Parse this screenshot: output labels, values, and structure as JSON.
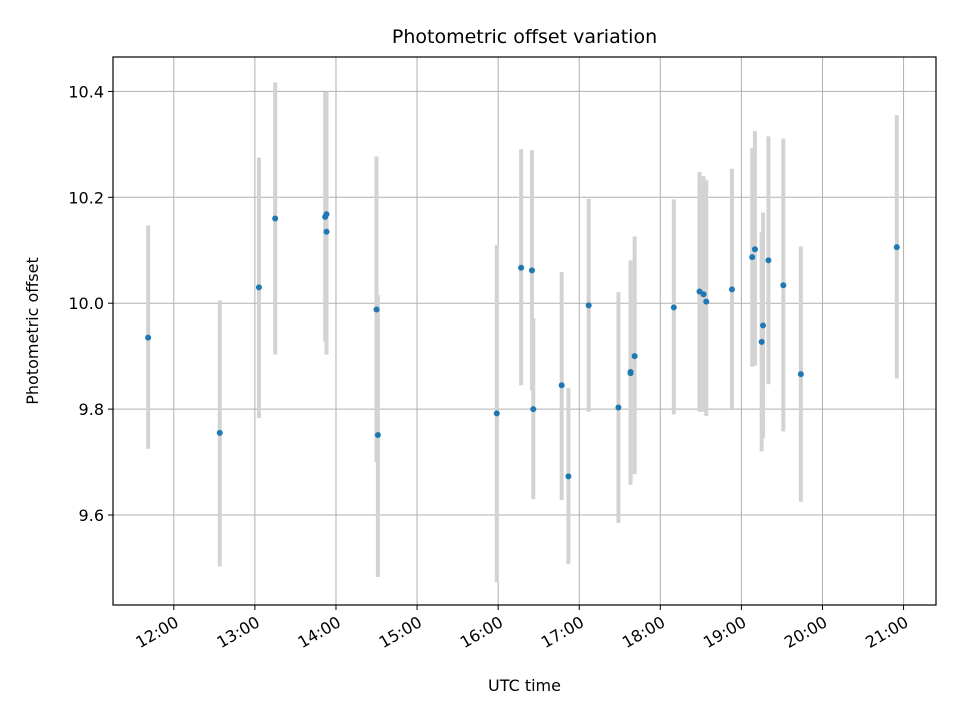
{
  "chart_data": {
    "type": "scatter",
    "title": "Photometric offset variation",
    "xlabel": "UTC time",
    "ylabel": "Photometric offset",
    "x_unit": "hours UTC",
    "xlim": [
      11.25,
      21.4
    ],
    "ylim": [
      9.43,
      10.465
    ],
    "x_ticks": [
      {
        "value": 12,
        "label": "12:00"
      },
      {
        "value": 13,
        "label": "13:00"
      },
      {
        "value": 14,
        "label": "14:00"
      },
      {
        "value": 15,
        "label": "15:00"
      },
      {
        "value": 16,
        "label": "16:00"
      },
      {
        "value": 17,
        "label": "17:00"
      },
      {
        "value": 18,
        "label": "18:00"
      },
      {
        "value": 19,
        "label": "19:00"
      },
      {
        "value": 20,
        "label": "20:00"
      },
      {
        "value": 21,
        "label": "21:00"
      }
    ],
    "y_ticks": [
      {
        "value": 9.6,
        "label": "9.6"
      },
      {
        "value": 9.8,
        "label": "9.8"
      },
      {
        "value": 10.0,
        "label": "10.0"
      },
      {
        "value": 10.2,
        "label": "10.2"
      },
      {
        "value": 10.4,
        "label": "10.4"
      }
    ],
    "grid": true,
    "marker_color": "#1f77b4",
    "errorbar_color": "#d3d3d3",
    "points": [
      {
        "x": "11:41",
        "y": 9.935,
        "lo": 9.725,
        "hi": 10.147
      },
      {
        "x": "12:34",
        "y": 9.755,
        "lo": 9.503,
        "hi": 10.005
      },
      {
        "x": "13:03",
        "y": 10.03,
        "lo": 9.783,
        "hi": 10.275
      },
      {
        "x": "13:15",
        "y": 10.16,
        "lo": 9.903,
        "hi": 10.417
      },
      {
        "x": "13:52",
        "y": 10.163,
        "lo": 9.927,
        "hi": 10.399
      },
      {
        "x": "13:53",
        "y": 10.168,
        "lo": 9.937,
        "hi": 10.399
      },
      {
        "x": "13:53",
        "y": 10.135,
        "lo": 9.903,
        "hi": 10.367
      },
      {
        "x": "14:30",
        "y": 9.988,
        "lo": 9.7,
        "hi": 10.277
      },
      {
        "x": "14:31",
        "y": 9.751,
        "lo": 9.483,
        "hi": 10.015
      },
      {
        "x": "15:59",
        "y": 9.792,
        "lo": 9.473,
        "hi": 10.11
      },
      {
        "x": "16:17",
        "y": 10.067,
        "lo": 9.845,
        "hi": 10.291
      },
      {
        "x": "16:25",
        "y": 10.062,
        "lo": 9.835,
        "hi": 10.289
      },
      {
        "x": "16:26",
        "y": 9.8,
        "lo": 9.63,
        "hi": 9.972
      },
      {
        "x": "16:47",
        "y": 9.845,
        "lo": 9.628,
        "hi": 10.059
      },
      {
        "x": "16:52",
        "y": 9.673,
        "lo": 9.507,
        "hi": 9.84
      },
      {
        "x": "17:07",
        "y": 9.996,
        "lo": 9.795,
        "hi": 10.197
      },
      {
        "x": "17:29",
        "y": 9.803,
        "lo": 9.585,
        "hi": 10.021
      },
      {
        "x": "17:38",
        "y": 9.87,
        "lo": 9.657,
        "hi": 10.081
      },
      {
        "x": "17:38",
        "y": 9.868,
        "lo": 9.667,
        "hi": 10.067
      },
      {
        "x": "17:41",
        "y": 9.9,
        "lo": 9.677,
        "hi": 10.126
      },
      {
        "x": "18:10",
        "y": 9.992,
        "lo": 9.79,
        "hi": 10.196
      },
      {
        "x": "18:29",
        "y": 10.022,
        "lo": 9.795,
        "hi": 10.248
      },
      {
        "x": "18:32",
        "y": 10.017,
        "lo": 9.795,
        "hi": 10.24
      },
      {
        "x": "18:34",
        "y": 10.003,
        "lo": 9.787,
        "hi": 10.232
      },
      {
        "x": "18:53",
        "y": 10.026,
        "lo": 9.8,
        "hi": 10.254
      },
      {
        "x": "19:08",
        "y": 10.087,
        "lo": 9.88,
        "hi": 10.293
      },
      {
        "x": "19:10",
        "y": 10.102,
        "lo": 9.882,
        "hi": 10.325
      },
      {
        "x": "19:15",
        "y": 9.927,
        "lo": 9.72,
        "hi": 10.134
      },
      {
        "x": "19:16",
        "y": 9.958,
        "lo": 9.745,
        "hi": 10.171
      },
      {
        "x": "19:20",
        "y": 10.081,
        "lo": 9.847,
        "hi": 10.315
      },
      {
        "x": "19:31",
        "y": 10.034,
        "lo": 9.758,
        "hi": 10.311
      },
      {
        "x": "19:44",
        "y": 9.866,
        "lo": 9.625,
        "hi": 10.107
      },
      {
        "x": "20:55",
        "y": 10.106,
        "lo": 9.858,
        "hi": 10.355
      }
    ]
  }
}
